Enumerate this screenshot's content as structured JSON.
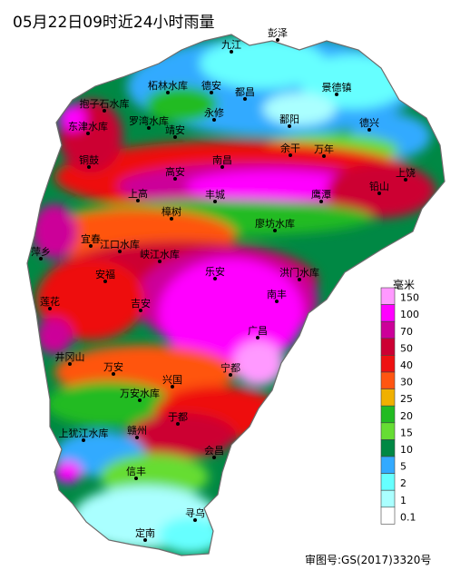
{
  "title": "05月22日09时近24小时雨量",
  "approval_number": "审图号:GS(2017)3320号",
  "legend": {
    "unit": "毫米",
    "bins": [
      {
        "label": "150",
        "color": "#ff99ff"
      },
      {
        "label": "100",
        "color": "#ff00ff"
      },
      {
        "label": "70",
        "color": "#cc0099"
      },
      {
        "label": "50",
        "color": "#cc0033"
      },
      {
        "label": "40",
        "color": "#ee1111"
      },
      {
        "label": "30",
        "color": "#ff5511"
      },
      {
        "label": "25",
        "color": "#f0b000"
      },
      {
        "label": "20",
        "color": "#22bb22"
      },
      {
        "label": "15",
        "color": "#66dd33"
      },
      {
        "label": "10",
        "color": "#008844"
      },
      {
        "label": "5",
        "color": "#33aaff"
      },
      {
        "label": "2",
        "color": "#66ffff"
      },
      {
        "label": "1",
        "color": "#aaffff"
      },
      {
        "label": "0.1",
        "color": "#ffffff"
      }
    ]
  },
  "places": [
    {
      "name": "九江",
      "kind": "city"
    },
    {
      "name": "彭泽",
      "kind": "city"
    },
    {
      "name": "柘林水库",
      "kind": "reservoir"
    },
    {
      "name": "德安",
      "kind": "city"
    },
    {
      "name": "都昌",
      "kind": "city"
    },
    {
      "name": "景德镇",
      "kind": "city"
    },
    {
      "name": "抱子石水库",
      "kind": "reservoir"
    },
    {
      "name": "永修",
      "kind": "city"
    },
    {
      "name": "鄱阳",
      "kind": "city"
    },
    {
      "name": "东津水库",
      "kind": "reservoir"
    },
    {
      "name": "罗湾水库",
      "kind": "reservoir"
    },
    {
      "name": "德兴",
      "kind": "city"
    },
    {
      "name": "靖安",
      "kind": "city"
    },
    {
      "name": "余干",
      "kind": "city"
    },
    {
      "name": "万年",
      "kind": "city"
    },
    {
      "name": "铜鼓",
      "kind": "city"
    },
    {
      "name": "南昌",
      "kind": "city"
    },
    {
      "name": "上饶",
      "kind": "city"
    },
    {
      "name": "高安",
      "kind": "city"
    },
    {
      "name": "铅山",
      "kind": "city"
    },
    {
      "name": "上高",
      "kind": "city"
    },
    {
      "name": "丰城",
      "kind": "city"
    },
    {
      "name": "鹰潭",
      "kind": "city"
    },
    {
      "name": "樟树",
      "kind": "city"
    },
    {
      "name": "廖坊水库",
      "kind": "reservoir"
    },
    {
      "name": "宜春",
      "kind": "city"
    },
    {
      "name": "江口水库",
      "kind": "reservoir"
    },
    {
      "name": "萍乡",
      "kind": "city"
    },
    {
      "name": "峡江水库",
      "kind": "reservoir"
    },
    {
      "name": "安福",
      "kind": "city"
    },
    {
      "name": "乐安",
      "kind": "city"
    },
    {
      "name": "洪门水库",
      "kind": "reservoir"
    },
    {
      "name": "南丰",
      "kind": "city"
    },
    {
      "name": "莲花",
      "kind": "city"
    },
    {
      "name": "吉安",
      "kind": "city"
    },
    {
      "name": "广昌",
      "kind": "city"
    },
    {
      "name": "井冈山",
      "kind": "city"
    },
    {
      "name": "万安",
      "kind": "city"
    },
    {
      "name": "宁都",
      "kind": "city"
    },
    {
      "name": "兴国",
      "kind": "city"
    },
    {
      "name": "万安水库",
      "kind": "reservoir"
    },
    {
      "name": "于都",
      "kind": "city"
    },
    {
      "name": "上犹江水库",
      "kind": "reservoir"
    },
    {
      "name": "赣州",
      "kind": "city"
    },
    {
      "name": "会昌",
      "kind": "city"
    },
    {
      "name": "信丰",
      "kind": "city"
    },
    {
      "name": "寻乌",
      "kind": "city"
    },
    {
      "name": "定南",
      "kind": "city"
    }
  ]
}
